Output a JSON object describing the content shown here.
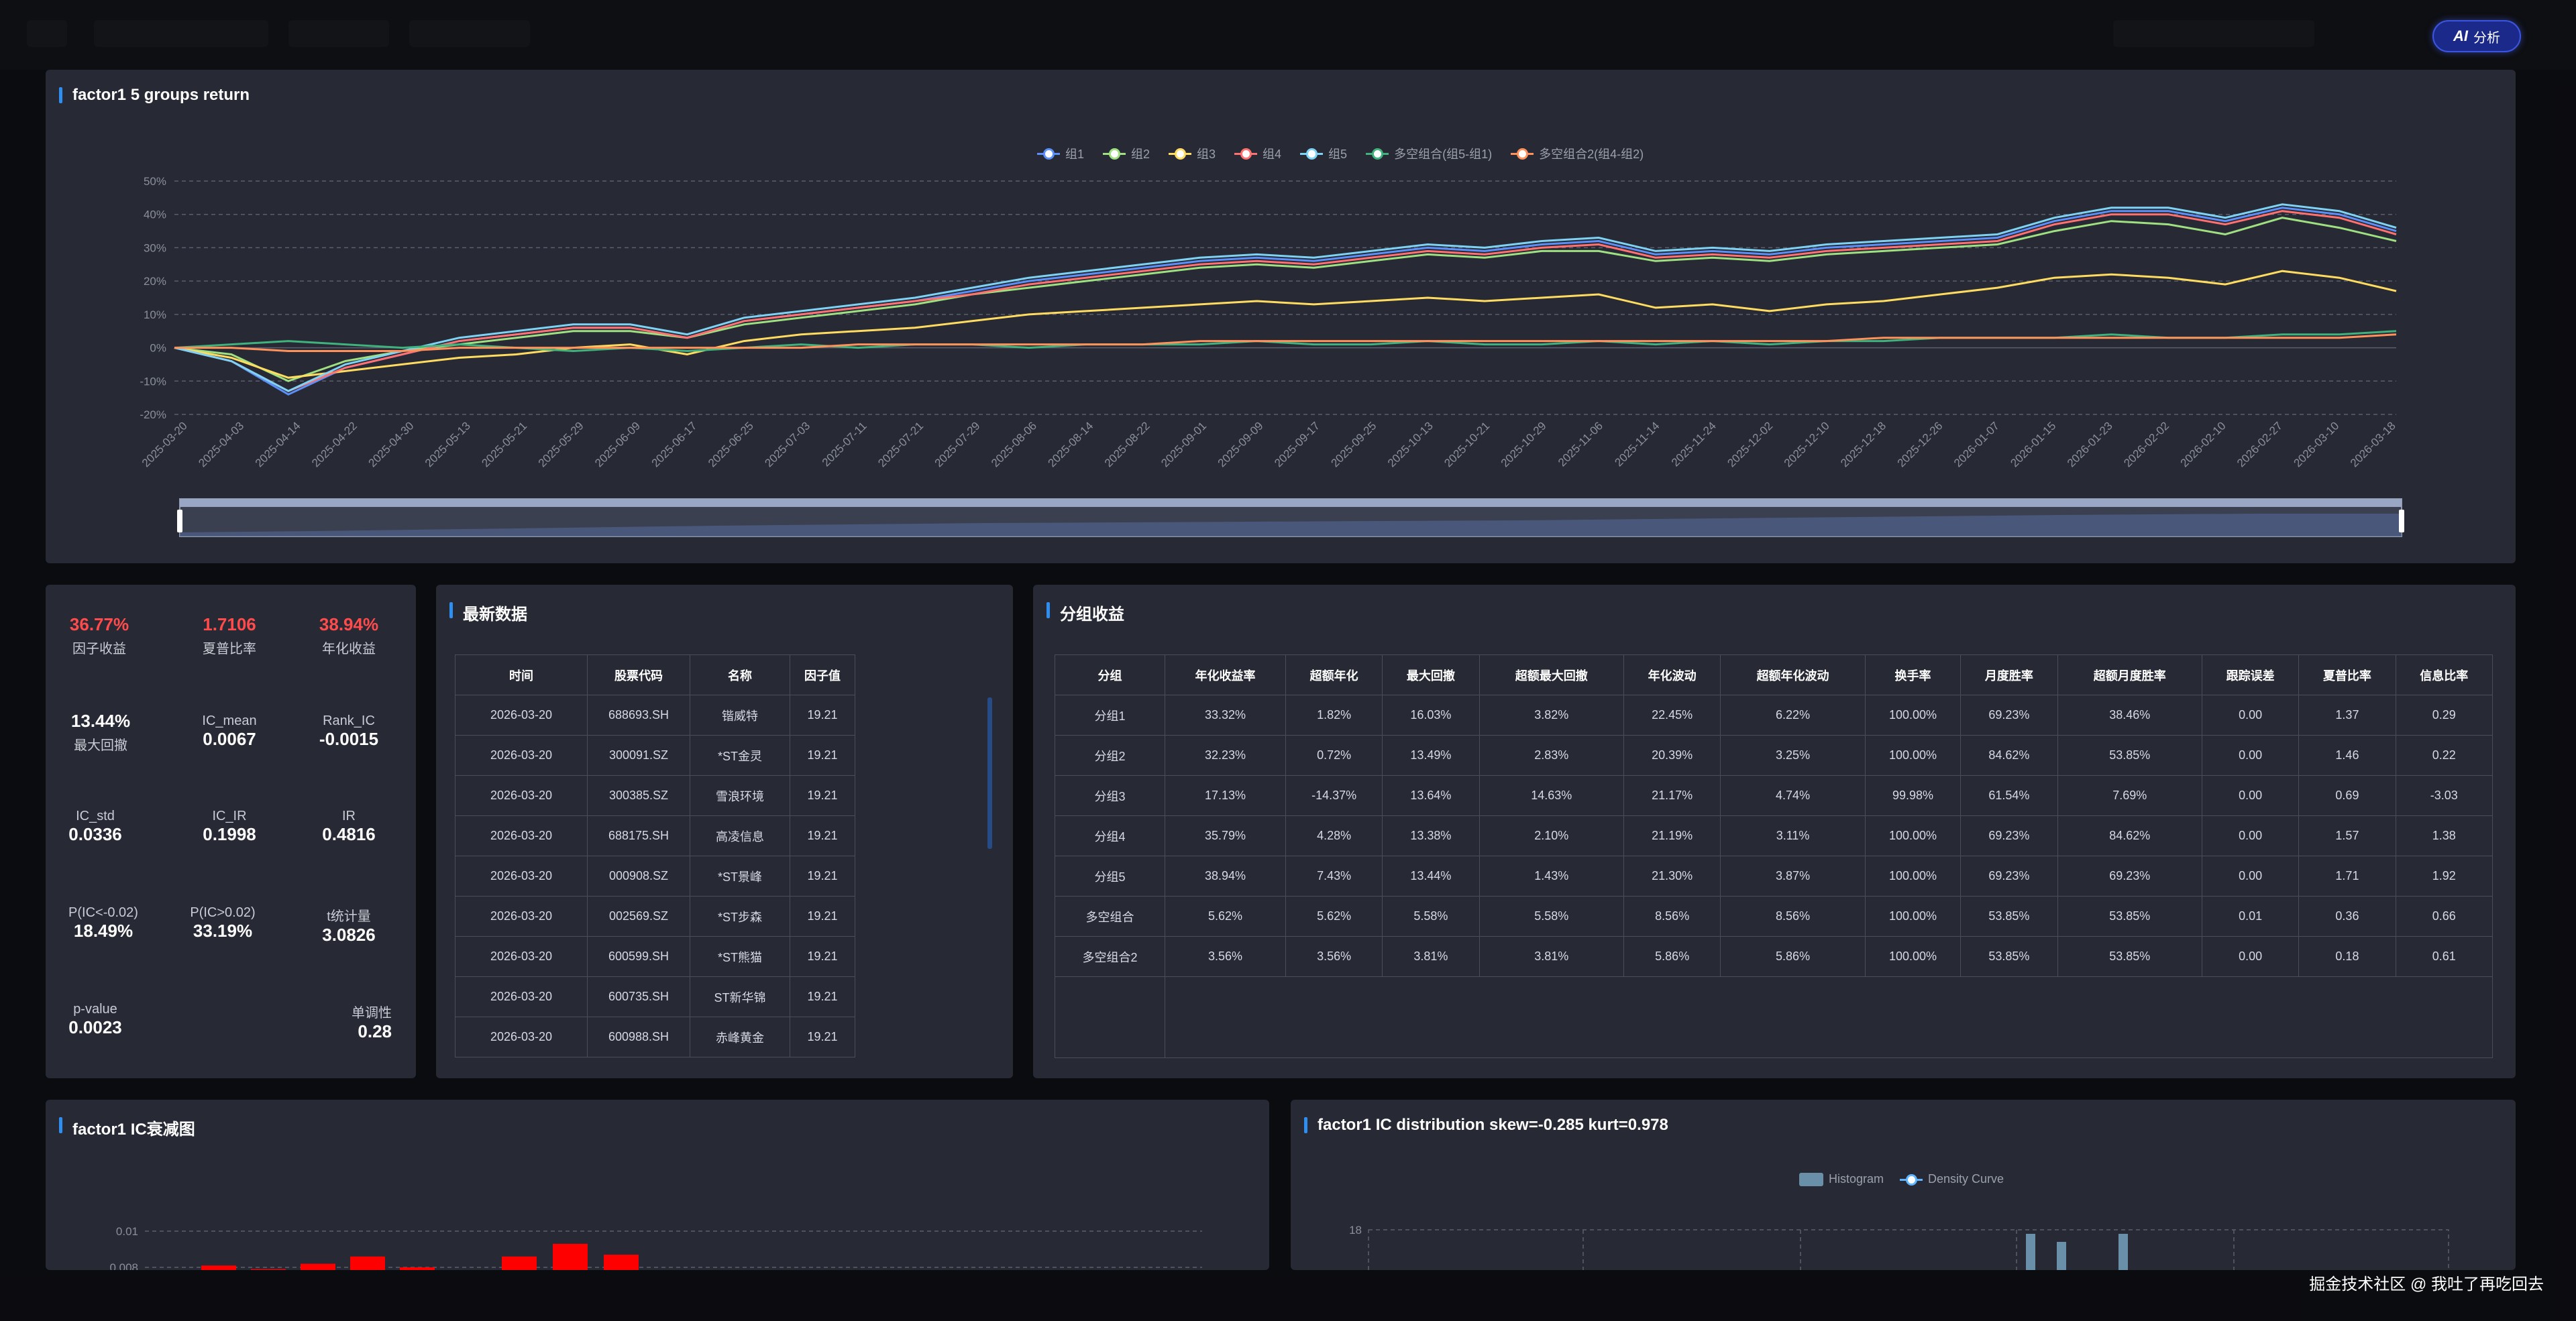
{
  "ai_button": {
    "icon": "ai-icon",
    "label": "分析",
    "accent": "#3c55e0"
  },
  "returns_panel": {
    "title": "factor1 5 groups return",
    "chart_data": {
      "type": "line",
      "y_ticks": [
        "50%",
        "40%",
        "30%",
        "20%",
        "10%",
        "0%",
        "-10%",
        "-20%"
      ],
      "ylim": [
        -20,
        50
      ],
      "x_ticks": [
        "2025-03-20",
        "2025-04-03",
        "2025-04-14",
        "2025-04-22",
        "2025-04-30",
        "2025-05-13",
        "2025-05-21",
        "2025-05-29",
        "2025-06-09",
        "2025-06-17",
        "2025-06-25",
        "2025-07-03",
        "2025-07-11",
        "2025-07-21",
        "2025-07-29",
        "2025-08-06",
        "2025-08-14",
        "2025-08-22",
        "2025-09-01",
        "2025-09-09",
        "2025-09-17",
        "2025-09-25",
        "2025-10-13",
        "2025-10-21",
        "2025-10-29",
        "2025-11-06",
        "2025-11-14",
        "2025-11-24",
        "2025-12-02",
        "2025-12-10",
        "2025-12-18",
        "2025-12-26",
        "2026-01-07",
        "2026-01-15",
        "2026-01-23",
        "2026-02-02",
        "2026-02-10",
        "2026-02-27",
        "2026-03-10",
        "2026-03-18"
      ],
      "series": [
        {
          "name": "组1",
          "color": "#5b8ff9",
          "values": [
            0,
            -4,
            -14,
            -6,
            -2,
            2,
            4,
            6,
            6,
            3,
            8,
            10,
            12,
            14,
            17,
            20,
            22,
            24,
            26,
            27,
            26,
            28,
            30,
            29,
            31,
            32,
            28,
            29,
            28,
            30,
            31,
            32,
            33,
            38,
            41,
            41,
            38,
            42,
            40,
            35
          ]
        },
        {
          "name": "组2",
          "color": "#9fe080",
          "values": [
            0,
            -2,
            -10,
            -4,
            -1,
            1,
            3,
            5,
            5,
            3,
            7,
            9,
            11,
            13,
            16,
            18,
            20,
            22,
            24,
            25,
            24,
            26,
            28,
            27,
            29,
            29,
            26,
            27,
            26,
            28,
            29,
            30,
            31,
            35,
            38,
            37,
            34,
            39,
            36,
            32
          ]
        },
        {
          "name": "组3",
          "color": "#ffdc60",
          "values": [
            0,
            -3,
            -9,
            -7,
            -5,
            -3,
            -2,
            0,
            1,
            -2,
            2,
            4,
            5,
            6,
            8,
            10,
            11,
            12,
            13,
            14,
            13,
            14,
            15,
            14,
            15,
            16,
            12,
            13,
            11,
            13,
            14,
            16,
            18,
            21,
            22,
            21,
            19,
            23,
            21,
            17
          ]
        },
        {
          "name": "组4",
          "color": "#ff7070",
          "values": [
            0,
            -4,
            -13,
            -6,
            -2,
            2,
            4,
            6,
            6,
            3,
            8,
            10,
            12,
            14,
            16,
            19,
            21,
            23,
            25,
            26,
            25,
            27,
            29,
            28,
            30,
            31,
            27,
            28,
            27,
            29,
            30,
            31,
            32,
            37,
            40,
            40,
            37,
            41,
            39,
            34
          ]
        },
        {
          "name": "组5",
          "color": "#7ed3f4",
          "values": [
            0,
            -4,
            -13,
            -5,
            -1,
            3,
            5,
            7,
            7,
            4,
            9,
            11,
            13,
            15,
            18,
            21,
            23,
            25,
            27,
            28,
            27,
            29,
            31,
            30,
            32,
            33,
            29,
            30,
            29,
            31,
            32,
            33,
            34,
            39,
            42,
            42,
            39,
            43,
            41,
            36
          ]
        },
        {
          "name": "多空组合(组5-组1)",
          "color": "#40b27d",
          "values": [
            0,
            1,
            2,
            1,
            0,
            1,
            0,
            -1,
            0,
            -1,
            0,
            1,
            0,
            1,
            1,
            0,
            1,
            1,
            1,
            2,
            1,
            1,
            2,
            1,
            1,
            2,
            1,
            2,
            1,
            2,
            2,
            3,
            3,
            3,
            4,
            3,
            3,
            4,
            4,
            5
          ]
        },
        {
          "name": "多空组合2(组4-组2)",
          "color": "#ff915a",
          "values": [
            0,
            0,
            -1,
            -1,
            -1,
            0,
            0,
            0,
            0,
            0,
            0,
            0,
            1,
            1,
            1,
            1,
            1,
            1,
            2,
            2,
            2,
            2,
            2,
            2,
            2,
            2,
            2,
            2,
            2,
            2,
            3,
            3,
            3,
            3,
            3,
            3,
            3,
            3,
            3,
            4
          ]
        }
      ],
      "grid": true,
      "legend": "top-center"
    }
  },
  "stats": {
    "factor_return": {
      "value": "36.77%",
      "label": "因子收益"
    },
    "sharpe": {
      "value": "1.7106",
      "label": "夏普比率"
    },
    "annual_return": {
      "value": "38.94%",
      "label": "年化收益"
    },
    "max_drawdown": {
      "value": "13.44%",
      "label": "最大回撤"
    },
    "ic_mean": {
      "label": "IC_mean",
      "value": "0.0067"
    },
    "rank_ic": {
      "label": "Rank_IC",
      "value": "-0.0015"
    },
    "ic_std": {
      "label": "IC_std",
      "value": "0.0336"
    },
    "ic_ir": {
      "label": "IC_IR",
      "value": "0.1998"
    },
    "ir": {
      "label": "IR",
      "value": "0.4816"
    },
    "p_ic_neg": {
      "label": "P(IC<-0.02)",
      "value": "18.49%"
    },
    "p_ic_pos": {
      "label": "P(IC>0.02)",
      "value": "33.19%"
    },
    "t_stat": {
      "label": "t统计量",
      "value": "3.0826"
    },
    "p_value": {
      "label": "p-value",
      "value": "0.0023"
    },
    "monotonic": {
      "label": "单调性",
      "value": "0.28"
    }
  },
  "latest": {
    "title": "最新数据",
    "columns": [
      "时间",
      "股票代码",
      "名称",
      "因子值"
    ],
    "rows": [
      [
        "2026-03-20",
        "688693.SH",
        "锴威特",
        "19.21"
      ],
      [
        "2026-03-20",
        "300091.SZ",
        "*ST金灵",
        "19.21"
      ],
      [
        "2026-03-20",
        "300385.SZ",
        "雪浪环境",
        "19.21"
      ],
      [
        "2026-03-20",
        "688175.SH",
        "高凌信息",
        "19.21"
      ],
      [
        "2026-03-20",
        "000908.SZ",
        "*ST景峰",
        "19.21"
      ],
      [
        "2026-03-20",
        "002569.SZ",
        "*ST步森",
        "19.21"
      ],
      [
        "2026-03-20",
        "600599.SH",
        "*ST熊猫",
        "19.21"
      ],
      [
        "2026-03-20",
        "600735.SH",
        "ST新华锦",
        "19.21"
      ],
      [
        "2026-03-20",
        "600988.SH",
        "赤峰黄金",
        "19.21"
      ]
    ]
  },
  "group_returns": {
    "title": "分组收益",
    "columns": [
      "分组",
      "年化收益率",
      "超额年化",
      "最大回撤",
      "超额最大回撤",
      "年化波动",
      "超额年化波动",
      "换手率",
      "月度胜率",
      "超额月度胜率",
      "跟踪误差",
      "夏普比率",
      "信息比率"
    ],
    "rows": [
      [
        "分组1",
        "33.32%",
        "1.82%",
        "16.03%",
        "3.82%",
        "22.45%",
        "6.22%",
        "100.00%",
        "69.23%",
        "38.46%",
        "0.00",
        "1.37",
        "0.29"
      ],
      [
        "分组2",
        "32.23%",
        "0.72%",
        "13.49%",
        "2.83%",
        "20.39%",
        "3.25%",
        "100.00%",
        "84.62%",
        "53.85%",
        "0.00",
        "1.46",
        "0.22"
      ],
      [
        "分组3",
        "17.13%",
        "-14.37%",
        "13.64%",
        "14.63%",
        "21.17%",
        "4.74%",
        "99.98%",
        "61.54%",
        "7.69%",
        "0.00",
        "0.69",
        "-3.03"
      ],
      [
        "分组4",
        "35.79%",
        "4.28%",
        "13.38%",
        "2.10%",
        "21.19%",
        "3.11%",
        "100.00%",
        "69.23%",
        "84.62%",
        "0.00",
        "1.57",
        "1.38"
      ],
      [
        "分组5",
        "38.94%",
        "7.43%",
        "13.44%",
        "1.43%",
        "21.30%",
        "3.87%",
        "100.00%",
        "69.23%",
        "69.23%",
        "0.00",
        "1.71",
        "1.92"
      ],
      [
        "多空组合",
        "5.62%",
        "5.62%",
        "5.58%",
        "5.58%",
        "8.56%",
        "8.56%",
        "100.00%",
        "53.85%",
        "53.85%",
        "0.01",
        "0.36",
        "0.66"
      ],
      [
        "多空组合2",
        "3.56%",
        "3.56%",
        "3.81%",
        "3.81%",
        "5.86%",
        "5.86%",
        "100.00%",
        "53.85%",
        "53.85%",
        "0.00",
        "0.18",
        "0.61"
      ]
    ]
  },
  "ic_decay": {
    "title": "factor1 IC衰减图",
    "chart_data": {
      "type": "bar",
      "y_ticks": [
        "0.01",
        "0.008"
      ],
      "values": [
        0.0081,
        0.0079,
        0.0082,
        0.0086,
        0.008,
        0.0078,
        0.0086,
        0.0093,
        0.0087
      ],
      "color": "#ff0000"
    }
  },
  "ic_dist": {
    "title": "factor1 IC distribution skew=-0.285 kurt=0.978",
    "legend": [
      "Histogram",
      "Density Curve"
    ],
    "chart_data": {
      "type": "bar",
      "y_ticks": [
        "18"
      ],
      "values": [
        18,
        14,
        18
      ],
      "color": "#6a8fa8"
    }
  },
  "watermark": "掘金技术社区 @ 我吐了再吃回去"
}
